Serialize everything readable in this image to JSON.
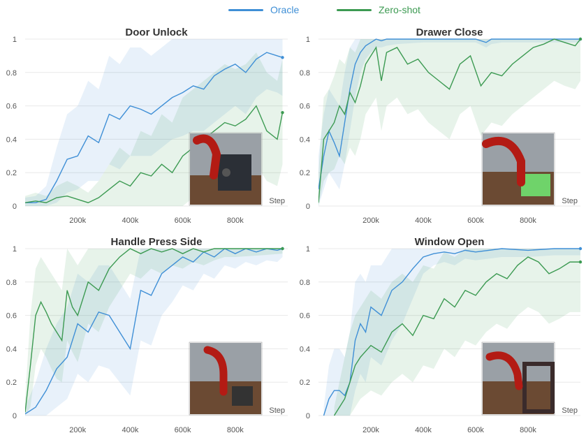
{
  "legend": {
    "oracle_label": "Oracle",
    "zeroshot_label": "Zero-shot"
  },
  "colors": {
    "oracle": "#3f8fd6",
    "zeroshot": "#3c9a52",
    "grid": "#e8e8e8"
  },
  "chart_data": [
    {
      "type": "line",
      "title": "Door Unlock",
      "xlabel": "Step",
      "x_ticks": [
        "200k",
        "400k",
        "600k",
        "800k"
      ],
      "y_ticks": [
        "0",
        "0.2",
        "0.4",
        "0.6",
        "0.8",
        "1"
      ],
      "xlim": [
        0,
        1000000
      ],
      "ylim": [
        0,
        1
      ],
      "inset": "sawyer-arm-door-lock-render",
      "series": [
        {
          "name": "Oracle",
          "x": [
            0,
            40000,
            80000,
            120000,
            160000,
            200000,
            240000,
            280000,
            320000,
            360000,
            400000,
            440000,
            480000,
            520000,
            560000,
            600000,
            640000,
            680000,
            720000,
            760000,
            800000,
            840000,
            880000,
            920000,
            960000,
            980000
          ],
          "y": [
            0.02,
            0.02,
            0.04,
            0.15,
            0.28,
            0.3,
            0.42,
            0.38,
            0.55,
            0.52,
            0.6,
            0.58,
            0.55,
            0.6,
            0.65,
            0.68,
            0.72,
            0.7,
            0.78,
            0.82,
            0.85,
            0.8,
            0.88,
            0.92,
            0.9,
            0.89
          ],
          "band_low": [
            0,
            0,
            0,
            0.02,
            0.08,
            0.1,
            0.15,
            0.15,
            0.25,
            0.22,
            0.3,
            0.3,
            0.3,
            0.35,
            0.4,
            0.42,
            0.45,
            0.45,
            0.5,
            0.55,
            0.6,
            0.55,
            0.65,
            0.7,
            0.68,
            0.66
          ],
          "band_high": [
            0.05,
            0.06,
            0.12,
            0.35,
            0.55,
            0.6,
            0.75,
            0.7,
            0.9,
            0.85,
            0.95,
            0.95,
            0.9,
            0.95,
            1,
            1,
            1,
            1,
            1,
            1,
            1,
            1,
            1,
            1,
            1,
            1
          ]
        },
        {
          "name": "Zero-shot",
          "x": [
            0,
            40000,
            80000,
            120000,
            160000,
            200000,
            240000,
            280000,
            320000,
            360000,
            400000,
            440000,
            480000,
            520000,
            560000,
            600000,
            640000,
            680000,
            720000,
            760000,
            800000,
            840000,
            880000,
            920000,
            960000,
            980000
          ],
          "y": [
            0.02,
            0.03,
            0.02,
            0.05,
            0.06,
            0.04,
            0.02,
            0.05,
            0.1,
            0.15,
            0.12,
            0.2,
            0.18,
            0.25,
            0.2,
            0.3,
            0.35,
            0.4,
            0.45,
            0.5,
            0.48,
            0.52,
            0.6,
            0.45,
            0.4,
            0.56
          ],
          "band_low": [
            0,
            0,
            0,
            0,
            0,
            0,
            0,
            0,
            0,
            0,
            0,
            0,
            0,
            0,
            0,
            0,
            0.05,
            0.1,
            0.12,
            0.15,
            0.15,
            0.2,
            0.25,
            0.15,
            0.12,
            0.25
          ],
          "band_high": [
            0.06,
            0.08,
            0.06,
            0.12,
            0.15,
            0.12,
            0.08,
            0.15,
            0.25,
            0.35,
            0.3,
            0.45,
            0.42,
            0.55,
            0.5,
            0.65,
            0.7,
            0.75,
            0.8,
            0.85,
            0.82,
            0.85,
            0.92,
            0.8,
            0.75,
            0.88
          ]
        }
      ]
    },
    {
      "type": "line",
      "title": "Drawer Close",
      "xlabel": "Step",
      "x_ticks": [
        "200k",
        "400k",
        "600k",
        "800k"
      ],
      "y_ticks": [
        "0",
        "0.2",
        "0.4",
        "0.6",
        "0.8",
        "1"
      ],
      "xlim": [
        0,
        1000000
      ],
      "ylim": [
        0,
        1
      ],
      "inset": "sawyer-arm-drawer-render",
      "series": [
        {
          "name": "Oracle",
          "x": [
            0,
            20000,
            40000,
            60000,
            80000,
            100000,
            120000,
            140000,
            160000,
            180000,
            200000,
            220000,
            240000,
            260000,
            300000,
            400000,
            500000,
            600000,
            640000,
            660000,
            700000,
            800000,
            900000,
            1000000
          ],
          "y": [
            0.1,
            0.3,
            0.45,
            0.38,
            0.3,
            0.5,
            0.7,
            0.85,
            0.92,
            0.96,
            0.98,
            1,
            0.99,
            1,
            1,
            1,
            1,
            1,
            0.98,
            1,
            1,
            1,
            1,
            1
          ],
          "band_low": [
            0,
            0.1,
            0.2,
            0.15,
            0.1,
            0.25,
            0.45,
            0.65,
            0.8,
            0.88,
            0.92,
            0.95,
            0.95,
            0.96,
            0.97,
            0.98,
            0.98,
            0.98,
            0.95,
            0.97,
            0.98,
            0.98,
            0.98,
            0.98
          ],
          "band_high": [
            0.3,
            0.55,
            0.7,
            0.65,
            0.6,
            0.8,
            0.95,
            1,
            1,
            1,
            1,
            1,
            1,
            1,
            1,
            1,
            1,
            1,
            1,
            1,
            1,
            1,
            1,
            1
          ]
        },
        {
          "name": "Zero-shot",
          "x": [
            0,
            20000,
            40000,
            60000,
            80000,
            100000,
            120000,
            140000,
            160000,
            180000,
            200000,
            220000,
            240000,
            260000,
            300000,
            340000,
            380000,
            420000,
            460000,
            500000,
            540000,
            580000,
            620000,
            660000,
            700000,
            740000,
            780000,
            820000,
            860000,
            900000,
            940000,
            980000,
            1000000
          ],
          "y": [
            0.02,
            0.4,
            0.45,
            0.5,
            0.6,
            0.55,
            0.68,
            0.62,
            0.72,
            0.85,
            0.9,
            0.95,
            0.75,
            0.92,
            0.95,
            0.85,
            0.88,
            0.8,
            0.75,
            0.7,
            0.85,
            0.9,
            0.72,
            0.8,
            0.78,
            0.85,
            0.9,
            0.95,
            0.97,
            1,
            0.98,
            0.96,
            1
          ],
          "band_low": [
            0,
            0.15,
            0.2,
            0.22,
            0.3,
            0.25,
            0.35,
            0.3,
            0.4,
            0.55,
            0.6,
            0.65,
            0.45,
            0.6,
            0.65,
            0.55,
            0.58,
            0.5,
            0.45,
            0.4,
            0.55,
            0.6,
            0.42,
            0.5,
            0.48,
            0.55,
            0.6,
            0.65,
            0.7,
            0.75,
            0.72,
            0.7,
            0.75
          ],
          "band_high": [
            0.2,
            0.65,
            0.7,
            0.78,
            0.88,
            0.85,
            0.95,
            0.92,
            1,
            1,
            1,
            1,
            1,
            1,
            1,
            1,
            1,
            1,
            1,
            1,
            1,
            1,
            1,
            1,
            1,
            1,
            1,
            1,
            1,
            1,
            1,
            1,
            1
          ]
        }
      ]
    },
    {
      "type": "line",
      "title": "Handle Press Side",
      "xlabel": "Step",
      "x_ticks": [
        "200k",
        "400k",
        "600k",
        "800k"
      ],
      "y_ticks": [
        "0",
        "0.2",
        "0.4",
        "0.6",
        "0.8",
        "1"
      ],
      "xlim": [
        0,
        1000000
      ],
      "ylim": [
        0,
        1
      ],
      "inset": "sawyer-arm-handle-render",
      "series": [
        {
          "name": "Oracle",
          "x": [
            0,
            40000,
            80000,
            120000,
            160000,
            200000,
            240000,
            280000,
            320000,
            360000,
            400000,
            440000,
            480000,
            520000,
            560000,
            600000,
            640000,
            680000,
            720000,
            760000,
            800000,
            840000,
            880000,
            920000,
            960000,
            980000
          ],
          "y": [
            0.01,
            0.05,
            0.15,
            0.28,
            0.35,
            0.55,
            0.5,
            0.62,
            0.6,
            0.5,
            0.4,
            0.75,
            0.72,
            0.85,
            0.9,
            0.95,
            0.92,
            0.98,
            0.95,
            1,
            0.97,
            1,
            0.98,
            1,
            0.99,
            1
          ],
          "band_low": [
            0,
            0,
            0,
            0.05,
            0.1,
            0.25,
            0.2,
            0.3,
            0.28,
            0.2,
            0.12,
            0.45,
            0.42,
            0.6,
            0.68,
            0.78,
            0.75,
            0.85,
            0.82,
            0.9,
            0.88,
            0.92,
            0.9,
            0.93,
            0.92,
            0.95
          ],
          "band_high": [
            0.05,
            0.2,
            0.4,
            0.55,
            0.65,
            0.85,
            0.8,
            0.9,
            0.9,
            0.8,
            0.7,
            1,
            1,
            1,
            1,
            1,
            1,
            1,
            1,
            1,
            1,
            1,
            1,
            1,
            1,
            1
          ]
        },
        {
          "name": "Zero-shot",
          "x": [
            0,
            20000,
            40000,
            60000,
            80000,
            100000,
            120000,
            140000,
            160000,
            180000,
            200000,
            240000,
            280000,
            320000,
            360000,
            400000,
            440000,
            480000,
            520000,
            560000,
            600000,
            640000,
            680000,
            720000,
            760000,
            800000,
            900000,
            980000
          ],
          "y": [
            0.02,
            0.3,
            0.6,
            0.68,
            0.62,
            0.55,
            0.5,
            0.45,
            0.75,
            0.65,
            0.6,
            0.8,
            0.75,
            0.88,
            0.95,
            1,
            0.97,
            1,
            0.98,
            1,
            0.97,
            1,
            0.98,
            1,
            1,
            1,
            1,
            1
          ],
          "band_low": [
            0,
            0.05,
            0.3,
            0.4,
            0.35,
            0.28,
            0.22,
            0.2,
            0.45,
            0.38,
            0.32,
            0.55,
            0.5,
            0.65,
            0.75,
            0.85,
            0.82,
            0.88,
            0.85,
            0.9,
            0.88,
            0.92,
            0.9,
            0.93,
            0.95,
            0.95,
            0.96,
            0.97
          ],
          "band_high": [
            0.1,
            0.6,
            0.88,
            0.95,
            0.9,
            0.85,
            0.8,
            0.75,
            1,
            0.95,
            0.9,
            1,
            1,
            1,
            1,
            1,
            1,
            1,
            1,
            1,
            1,
            1,
            1,
            1,
            1,
            1,
            1,
            1
          ]
        }
      ]
    },
    {
      "type": "line",
      "title": "Window Open",
      "xlabel": "Step",
      "x_ticks": [
        "200k",
        "400k",
        "600k",
        "800k"
      ],
      "y_ticks": [
        "0",
        "0.2",
        "0.4",
        "0.6",
        "0.8",
        "1"
      ],
      "xlim": [
        0,
        1000000
      ],
      "ylim": [
        0,
        1
      ],
      "inset": "sawyer-arm-window-render",
      "series": [
        {
          "name": "Oracle",
          "x": [
            20000,
            40000,
            60000,
            80000,
            100000,
            120000,
            140000,
            160000,
            180000,
            200000,
            240000,
            280000,
            320000,
            360000,
            400000,
            440000,
            480000,
            520000,
            560000,
            600000,
            700000,
            800000,
            900000,
            1000000
          ],
          "y": [
            0,
            0.1,
            0.15,
            0.15,
            0.12,
            0.2,
            0.45,
            0.55,
            0.5,
            0.65,
            0.6,
            0.75,
            0.8,
            0.88,
            0.95,
            0.97,
            0.98,
            0.97,
            0.99,
            0.98,
            1,
            0.99,
            1,
            1
          ],
          "band_low": [
            0,
            0,
            0,
            0,
            0,
            0,
            0.15,
            0.25,
            0.2,
            0.35,
            0.3,
            0.45,
            0.55,
            0.7,
            0.85,
            0.9,
            0.92,
            0.9,
            0.94,
            0.93,
            0.95,
            0.95,
            0.96,
            0.96
          ],
          "band_high": [
            0.05,
            0.3,
            0.4,
            0.4,
            0.35,
            0.5,
            0.8,
            0.85,
            0.8,
            0.9,
            0.9,
            1,
            1,
            1,
            1,
            1,
            1,
            1,
            1,
            1,
            1,
            1,
            1,
            1
          ]
        },
        {
          "name": "Zero-shot",
          "x": [
            60000,
            80000,
            100000,
            120000,
            140000,
            160000,
            200000,
            240000,
            280000,
            320000,
            360000,
            400000,
            440000,
            480000,
            520000,
            560000,
            600000,
            640000,
            680000,
            720000,
            760000,
            800000,
            840000,
            880000,
            920000,
            960000,
            1000000
          ],
          "y": [
            0,
            0.05,
            0.1,
            0.2,
            0.3,
            0.35,
            0.42,
            0.38,
            0.5,
            0.55,
            0.48,
            0.6,
            0.58,
            0.7,
            0.65,
            0.75,
            0.72,
            0.8,
            0.85,
            0.82,
            0.9,
            0.95,
            0.92,
            0.85,
            0.88,
            0.92,
            0.92
          ],
          "band_low": [
            0,
            0,
            0,
            0,
            0.05,
            0.1,
            0.15,
            0.12,
            0.2,
            0.25,
            0.2,
            0.3,
            0.28,
            0.4,
            0.35,
            0.45,
            0.42,
            0.5,
            0.55,
            0.52,
            0.6,
            0.65,
            0.62,
            0.55,
            0.58,
            0.62,
            0.62
          ],
          "band_high": [
            0.05,
            0.2,
            0.35,
            0.5,
            0.6,
            0.65,
            0.75,
            0.7,
            0.8,
            0.85,
            0.8,
            0.9,
            0.88,
            0.98,
            0.95,
            1,
            1,
            1,
            1,
            1,
            1,
            1,
            1,
            1,
            1,
            1,
            1
          ]
        }
      ]
    }
  ]
}
